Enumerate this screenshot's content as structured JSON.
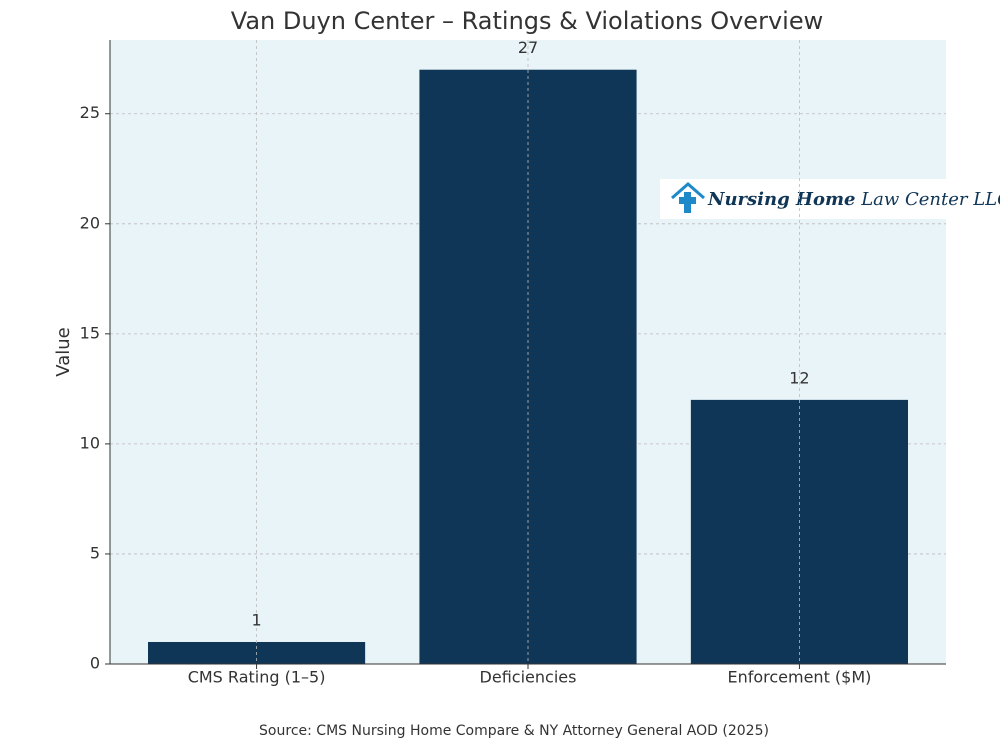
{
  "chart_data": {
    "type": "bar",
    "title": "Van Duyn Center – Ratings & Violations Overview",
    "categories": [
      "CMS Rating (1–5)",
      "Deficiencies",
      "Enforcement ($M)"
    ],
    "values": [
      1,
      27,
      12
    ],
    "color": "#0f3557",
    "ylabel": "Value",
    "ylim": [
      0,
      28.35
    ],
    "yticks": [
      0,
      5,
      10,
      15,
      20,
      25
    ],
    "grid": true,
    "source": "Source: CMS Nursing Home Compare & NY Attorney General AOD (2025)"
  },
  "logo": {
    "bold": "Nursing Home",
    "rest": "Law Center LLC"
  }
}
